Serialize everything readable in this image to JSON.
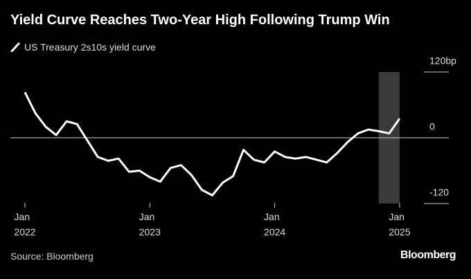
{
  "chart_data": {
    "type": "line",
    "title": "Yield Curve Reaches Two-Year High Following Trump Win",
    "source": "Source: Bloomberg",
    "brand": "Bloomberg",
    "x": [
      "2022-01",
      "2022-02",
      "2022-03",
      "2022-04",
      "2022-05",
      "2022-06",
      "2022-07",
      "2022-08",
      "2022-09",
      "2022-10",
      "2022-11",
      "2022-12",
      "2023-01",
      "2023-02",
      "2023-03",
      "2023-04",
      "2023-05",
      "2023-06",
      "2023-07",
      "2023-08",
      "2023-09",
      "2023-10",
      "2023-11",
      "2023-12",
      "2024-01",
      "2024-02",
      "2024-03",
      "2024-04",
      "2024-05",
      "2024-06",
      "2024-07",
      "2024-08",
      "2024-09",
      "2024-10",
      "2024-11",
      "2024-12",
      "2025-01"
    ],
    "series": [
      {
        "name": "US Treasury 2s10s yield curve",
        "color": "#ffffff",
        "values": [
          83,
          45,
          20,
          5,
          30,
          25,
          -5,
          -35,
          -42,
          -38,
          -62,
          -60,
          -72,
          -80,
          -55,
          -50,
          -68,
          -95,
          -105,
          -82,
          -70,
          -22,
          -40,
          -45,
          -25,
          -35,
          -38,
          -35,
          -40,
          -45,
          -28,
          -8,
          8,
          15,
          12,
          8,
          35
        ]
      }
    ],
    "highlight": [
      "2024-11",
      "2025-01"
    ],
    "xlim": [
      "2022-01",
      "2025-04"
    ],
    "xticks": [
      {
        "value": "2022-01",
        "label": "Jan\n2022"
      },
      {
        "value": "2023-01",
        "label": "Jan\n2023"
      },
      {
        "value": "2024-01",
        "label": "Jan\n2024"
      },
      {
        "value": "2025-01",
        "label": "Jan\n2025"
      }
    ],
    "ylim": [
      -120,
      120
    ],
    "yticks": [
      {
        "value": 120,
        "label": "120bp"
      },
      0,
      -120
    ]
  }
}
